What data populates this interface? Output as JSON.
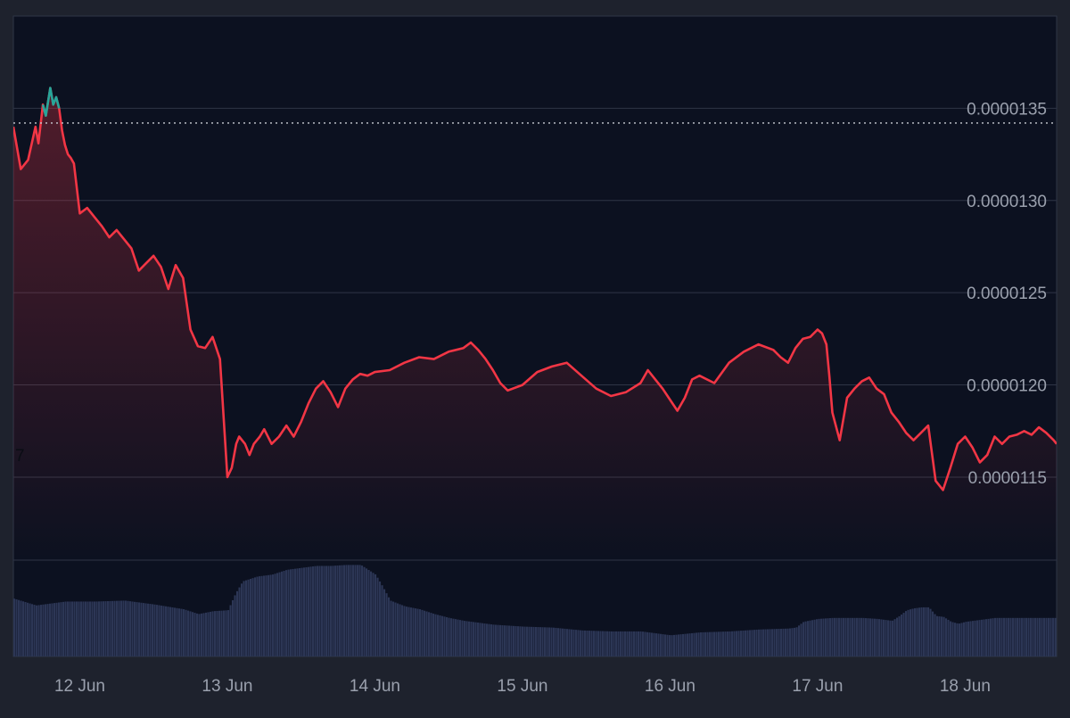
{
  "colors": {
    "page_bg": "#1e222d",
    "plot_bg": "#0c1120",
    "grid": "#2f3546",
    "down_line": "#f23645",
    "up_line": "#26a69a",
    "volume": "#2c3655",
    "axis_text": "#9aa0ad",
    "ref_line": "#c9ccd3",
    "stray_label": "#0a0d14"
  },
  "stray_label": "7",
  "chart_data": {
    "type": "area",
    "title": "",
    "xlabel": "",
    "ylabel": "",
    "grid": true,
    "legend": "none",
    "x_range_days": [
      11.55,
      18.62
    ],
    "x_ticks": [
      {
        "day": 12,
        "label": "12 Jun"
      },
      {
        "day": 13,
        "label": "13 Jun"
      },
      {
        "day": 14,
        "label": "14 Jun"
      },
      {
        "day": 15,
        "label": "15 Jun"
      },
      {
        "day": 16,
        "label": "16 Jun"
      },
      {
        "day": 17,
        "label": "17 Jun"
      },
      {
        "day": 18,
        "label": "18 Jun"
      }
    ],
    "y_range": [
      1.105e-05,
      1.4e-05
    ],
    "y_ticks": [
      {
        "value": 1.35e-05,
        "label": "0.0000135"
      },
      {
        "value": 1.3e-05,
        "label": "0.0000130"
      },
      {
        "value": 1.25e-05,
        "label": "0.0000125"
      },
      {
        "value": 1.2e-05,
        "label": "0.0000120"
      },
      {
        "value": 1.15e-05,
        "label": "0.0000115"
      }
    ],
    "reference_price": 1.342e-05,
    "price_series": {
      "x": [
        11.55,
        11.6,
        11.65,
        11.7,
        11.72,
        11.75,
        11.77,
        11.8,
        11.82,
        11.84,
        11.86,
        11.88,
        11.9,
        11.92,
        11.94,
        11.96,
        12.0,
        12.05,
        12.1,
        12.15,
        12.2,
        12.25,
        12.3,
        12.35,
        12.4,
        12.45,
        12.5,
        12.55,
        12.6,
        12.65,
        12.7,
        12.75,
        12.8,
        12.85,
        12.9,
        12.95,
        13.0,
        13.03,
        13.06,
        13.08,
        13.12,
        13.15,
        13.18,
        13.22,
        13.25,
        13.3,
        13.35,
        13.4,
        13.45,
        13.5,
        13.55,
        13.6,
        13.65,
        13.7,
        13.75,
        13.8,
        13.85,
        13.9,
        13.95,
        14.0,
        14.1,
        14.2,
        14.3,
        14.4,
        14.5,
        14.6,
        14.65,
        14.7,
        14.75,
        14.8,
        14.85,
        14.9,
        15.0,
        15.1,
        15.2,
        15.3,
        15.4,
        15.5,
        15.6,
        15.7,
        15.8,
        15.85,
        15.9,
        15.95,
        16.0,
        16.05,
        16.1,
        16.15,
        16.2,
        16.3,
        16.4,
        16.5,
        16.6,
        16.7,
        16.75,
        16.8,
        16.85,
        16.9,
        16.95,
        17.0,
        17.03,
        17.06,
        17.08,
        17.1,
        17.15,
        17.2,
        17.25,
        17.3,
        17.35,
        17.4,
        17.45,
        17.5,
        17.55,
        17.6,
        17.65,
        17.7,
        17.75,
        17.78,
        17.8,
        17.85,
        17.9,
        17.95,
        18.0,
        18.05,
        18.1,
        18.15,
        18.2,
        18.25,
        18.3,
        18.35,
        18.4,
        18.45,
        18.5,
        18.55,
        18.6,
        18.62
      ],
      "y": [
        1.34e-05,
        1.317e-05,
        1.322e-05,
        1.34e-05,
        1.331e-05,
        1.352e-05,
        1.346e-05,
        1.361e-05,
        1.352e-05,
        1.356e-05,
        1.35e-05,
        1.338e-05,
        1.33e-05,
        1.325e-05,
        1.323e-05,
        1.32e-05,
        1.293e-05,
        1.296e-05,
        1.291e-05,
        1.286e-05,
        1.28e-05,
        1.284e-05,
        1.279e-05,
        1.274e-05,
        1.262e-05,
        1.266e-05,
        1.27e-05,
        1.264e-05,
        1.252e-05,
        1.265e-05,
        1.258e-05,
        1.23e-05,
        1.221e-05,
        1.22e-05,
        1.226e-05,
        1.214e-05,
        1.15e-05,
        1.155e-05,
        1.168e-05,
        1.172e-05,
        1.168e-05,
        1.162e-05,
        1.168e-05,
        1.172e-05,
        1.176e-05,
        1.168e-05,
        1.172e-05,
        1.178e-05,
        1.172e-05,
        1.18e-05,
        1.19e-05,
        1.198e-05,
        1.202e-05,
        1.196e-05,
        1.188e-05,
        1.198e-05,
        1.203e-05,
        1.206e-05,
        1.205e-05,
        1.207e-05,
        1.208e-05,
        1.212e-05,
        1.215e-05,
        1.214e-05,
        1.218e-05,
        1.22e-05,
        1.223e-05,
        1.219e-05,
        1.214e-05,
        1.208e-05,
        1.201e-05,
        1.197e-05,
        1.2e-05,
        1.207e-05,
        1.21e-05,
        1.212e-05,
        1.205e-05,
        1.198e-05,
        1.194e-05,
        1.196e-05,
        1.201e-05,
        1.208e-05,
        1.203e-05,
        1.198e-05,
        1.192e-05,
        1.186e-05,
        1.193e-05,
        1.203e-05,
        1.205e-05,
        1.201e-05,
        1.212e-05,
        1.218e-05,
        1.222e-05,
        1.219e-05,
        1.215e-05,
        1.212e-05,
        1.22e-05,
        1.225e-05,
        1.226e-05,
        1.23e-05,
        1.228e-05,
        1.222e-05,
        1.205e-05,
        1.185e-05,
        1.17e-05,
        1.193e-05,
        1.198e-05,
        1.202e-05,
        1.204e-05,
        1.198e-05,
        1.195e-05,
        1.185e-05,
        1.18e-05,
        1.174e-05,
        1.17e-05,
        1.174e-05,
        1.178e-05,
        1.16e-05,
        1.148e-05,
        1.143e-05,
        1.155e-05,
        1.168e-05,
        1.172e-05,
        1.166e-05,
        1.158e-05,
        1.162e-05,
        1.172e-05,
        1.168e-05,
        1.172e-05,
        1.173e-05,
        1.175e-05,
        1.173e-05,
        1.177e-05,
        1.174e-05,
        1.17e-05,
        1.168e-05
      ]
    },
    "volume_series": {
      "x": [
        11.55,
        11.7,
        11.9,
        12.1,
        12.3,
        12.5,
        12.7,
        12.8,
        12.9,
        13.0,
        13.05,
        13.1,
        13.2,
        13.3,
        13.4,
        13.5,
        13.6,
        13.7,
        13.8,
        13.9,
        14.0,
        14.05,
        14.1,
        14.2,
        14.3,
        14.4,
        14.5,
        14.6,
        14.7,
        14.8,
        15.0,
        15.2,
        15.4,
        15.6,
        15.8,
        15.9,
        16.0,
        16.2,
        16.4,
        16.6,
        16.8,
        16.85,
        16.9,
        17.0,
        17.1,
        17.2,
        17.3,
        17.4,
        17.5,
        17.55,
        17.6,
        17.65,
        17.7,
        17.75,
        17.8,
        17.85,
        17.9,
        17.95,
        18.0,
        18.1,
        18.2,
        18.3,
        18.4,
        18.5,
        18.62
      ],
      "y": [
        60,
        53,
        57,
        57,
        58,
        54,
        49,
        44,
        47,
        48,
        65,
        78,
        83,
        85,
        90,
        92,
        94,
        94,
        95,
        95,
        85,
        72,
        58,
        52,
        49,
        44,
        40,
        37,
        35,
        33,
        31,
        30,
        27,
        26,
        26,
        24,
        22,
        25,
        26,
        28,
        29,
        30,
        36,
        39,
        40,
        40,
        40,
        39,
        37,
        42,
        48,
        50,
        51,
        51,
        42,
        41,
        36,
        34,
        36,
        38,
        40,
        40,
        40,
        40,
        40
      ]
    }
  }
}
